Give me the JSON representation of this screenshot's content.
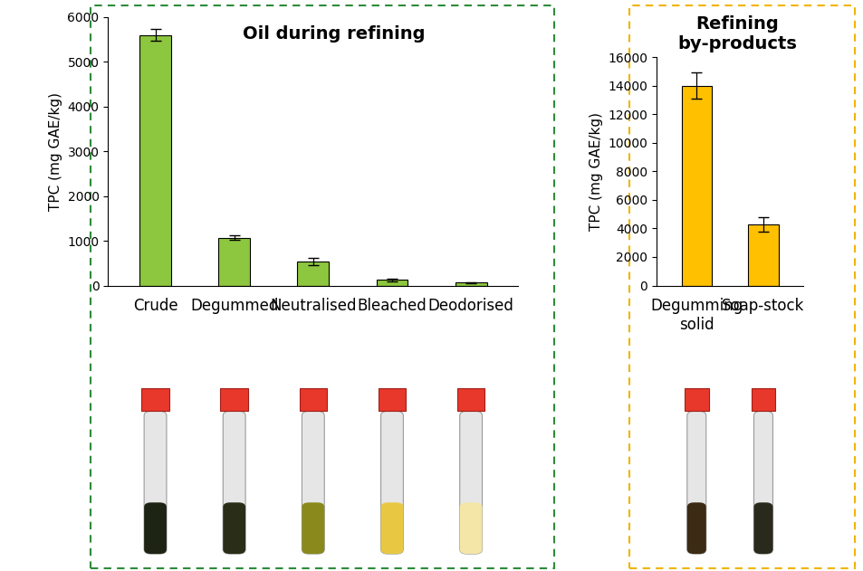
{
  "chart_data": [
    {
      "type": "bar",
      "title": "Oil during refining",
      "y_label": "TPC (mg GAE/kg)",
      "categories": [
        "Crude",
        "Degummed",
        "Neutralised",
        "Bleached",
        "Deodorised"
      ],
      "values": [
        5600,
        1070,
        530,
        130,
        70
      ],
      "errors": [
        130,
        50,
        80,
        30,
        10
      ],
      "color": "#8dc63f",
      "ylim": [
        0,
        6000
      ],
      "yticks": [
        0,
        1000,
        2000,
        3000,
        4000,
        5000,
        6000
      ],
      "grid": false
    },
    {
      "type": "bar",
      "title": "Refining\nby-products",
      "y_label": "TPC (mg GAE/kg)",
      "categories": [
        "Degumming solid",
        "Soap-stock"
      ],
      "values": [
        14000,
        4300
      ],
      "errors": [
        900,
        500
      ],
      "color": "#ffc000",
      "ylim": [
        0,
        16000
      ],
      "yticks": [
        0,
        2000,
        4000,
        6000,
        8000,
        10000,
        12000,
        14000,
        16000
      ],
      "grid": false
    }
  ]
}
